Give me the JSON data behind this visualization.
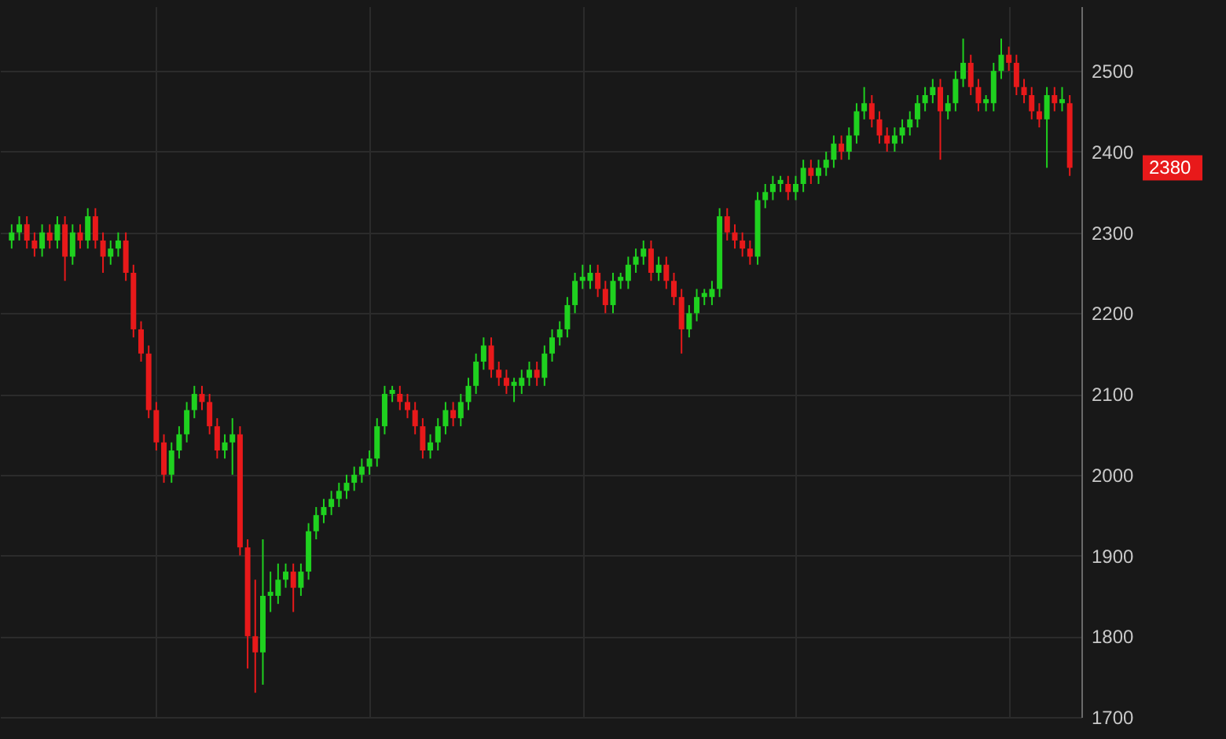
{
  "chart_data": {
    "type": "candlestick",
    "categories": [
      null,
      null,
      null,
      null,
      null,
      null,
      null,
      null,
      null,
      null,
      null,
      null,
      null,
      null,
      null,
      null,
      null,
      null,
      null,
      null,
      null,
      null,
      null,
      null,
      null,
      null,
      null,
      null,
      null,
      null,
      null,
      null,
      null,
      null,
      null,
      null,
      null,
      null,
      null,
      null,
      null,
      null,
      null,
      null,
      null,
      null,
      null,
      null,
      null,
      null,
      null,
      null,
      null,
      null,
      null,
      null,
      null,
      null,
      null,
      null,
      null,
      null,
      null,
      null,
      null,
      null,
      null,
      null,
      null,
      null,
      null,
      null,
      null,
      null,
      null,
      null,
      null,
      null,
      null,
      null,
      null,
      null,
      null,
      null,
      null,
      null,
      null,
      null,
      null,
      null,
      null,
      null,
      null,
      null,
      null,
      null,
      null,
      null,
      null,
      null,
      null,
      null,
      null,
      null,
      null,
      null,
      null,
      null,
      null,
      null,
      null,
      null,
      null,
      null,
      null,
      null,
      null,
      null,
      null,
      null,
      null,
      null,
      null,
      null,
      null,
      null,
      null,
      null,
      null,
      null,
      null,
      null,
      null,
      null,
      null,
      null,
      null,
      null,
      null,
      null
    ],
    "ohlc": [
      [
        2290,
        2310,
        2280,
        2300
      ],
      [
        2300,
        2320,
        2290,
        2310
      ],
      [
        2310,
        2320,
        2280,
        2290
      ],
      [
        2290,
        2300,
        2270,
        2280
      ],
      [
        2280,
        2310,
        2270,
        2300
      ],
      [
        2300,
        2310,
        2280,
        2290
      ],
      [
        2290,
        2320,
        2280,
        2310
      ],
      [
        2310,
        2320,
        2240,
        2270
      ],
      [
        2270,
        2310,
        2260,
        2300
      ],
      [
        2300,
        2310,
        2280,
        2290
      ],
      [
        2290,
        2330,
        2280,
        2320
      ],
      [
        2320,
        2330,
        2280,
        2290
      ],
      [
        2290,
        2300,
        2250,
        2270
      ],
      [
        2270,
        2290,
        2260,
        2280
      ],
      [
        2280,
        2300,
        2270,
        2290
      ],
      [
        2290,
        2300,
        2240,
        2250
      ],
      [
        2250,
        2260,
        2170,
        2180
      ],
      [
        2180,
        2190,
        2140,
        2150
      ],
      [
        2150,
        2160,
        2070,
        2080
      ],
      [
        2080,
        2090,
        2030,
        2040
      ],
      [
        2040,
        2050,
        1990,
        2000
      ],
      [
        2000,
        2040,
        1990,
        2030
      ],
      [
        2030,
        2060,
        2020,
        2050
      ],
      [
        2050,
        2090,
        2040,
        2080
      ],
      [
        2080,
        2110,
        2070,
        2100
      ],
      [
        2100,
        2110,
        2080,
        2090
      ],
      [
        2090,
        2100,
        2050,
        2060
      ],
      [
        2060,
        2070,
        2020,
        2030
      ],
      [
        2030,
        2050,
        2020,
        2040
      ],
      [
        2040,
        2070,
        2000,
        2050
      ],
      [
        2050,
        2060,
        1900,
        1910
      ],
      [
        1910,
        1920,
        1760,
        1800
      ],
      [
        1800,
        1870,
        1730,
        1780
      ],
      [
        1780,
        1920,
        1740,
        1850
      ],
      [
        1850,
        1880,
        1830,
        1855
      ],
      [
        1850,
        1890,
        1840,
        1870
      ],
      [
        1870,
        1890,
        1860,
        1880
      ],
      [
        1880,
        1890,
        1830,
        1860
      ],
      [
        1860,
        1890,
        1850,
        1880
      ],
      [
        1880,
        1940,
        1870,
        1930
      ],
      [
        1930,
        1960,
        1920,
        1950
      ],
      [
        1950,
        1970,
        1940,
        1960
      ],
      [
        1960,
        1980,
        1950,
        1970
      ],
      [
        1970,
        1990,
        1960,
        1980
      ],
      [
        1980,
        2000,
        1970,
        1990
      ],
      [
        1990,
        2010,
        1980,
        2000
      ],
      [
        2000,
        2020,
        1990,
        2010
      ],
      [
        2010,
        2030,
        2000,
        2020
      ],
      [
        2020,
        2070,
        2010,
        2060
      ],
      [
        2060,
        2110,
        2050,
        2100
      ],
      [
        2100,
        2110,
        2090,
        2105
      ],
      [
        2100,
        2110,
        2080,
        2090
      ],
      [
        2090,
        2100,
        2070,
        2080
      ],
      [
        2080,
        2090,
        2050,
        2060
      ],
      [
        2060,
        2070,
        2020,
        2030
      ],
      [
        2030,
        2050,
        2020,
        2040
      ],
      [
        2040,
        2070,
        2030,
        2060
      ],
      [
        2060,
        2090,
        2050,
        2080
      ],
      [
        2080,
        2090,
        2060,
        2070
      ],
      [
        2070,
        2100,
        2060,
        2090
      ],
      [
        2090,
        2120,
        2080,
        2110
      ],
      [
        2110,
        2150,
        2100,
        2140
      ],
      [
        2140,
        2170,
        2130,
        2160
      ],
      [
        2160,
        2170,
        2120,
        2130
      ],
      [
        2130,
        2140,
        2110,
        2120
      ],
      [
        2120,
        2130,
        2100,
        2110
      ],
      [
        2110,
        2120,
        2090,
        2115
      ],
      [
        2110,
        2130,
        2100,
        2120
      ],
      [
        2120,
        2140,
        2110,
        2130
      ],
      [
        2130,
        2140,
        2110,
        2120
      ],
      [
        2120,
        2160,
        2110,
        2150
      ],
      [
        2150,
        2180,
        2140,
        2170
      ],
      [
        2170,
        2190,
        2160,
        2180
      ],
      [
        2180,
        2220,
        2170,
        2210
      ],
      [
        2210,
        2250,
        2200,
        2240
      ],
      [
        2240,
        2260,
        2230,
        2245
      ],
      [
        2240,
        2260,
        2230,
        2250
      ],
      [
        2250,
        2260,
        2220,
        2230
      ],
      [
        2230,
        2240,
        2200,
        2210
      ],
      [
        2210,
        2250,
        2200,
        2240
      ],
      [
        2240,
        2250,
        2230,
        2245
      ],
      [
        2240,
        2270,
        2230,
        2260
      ],
      [
        2260,
        2280,
        2250,
        2270
      ],
      [
        2270,
        2290,
        2260,
        2280
      ],
      [
        2280,
        2290,
        2240,
        2250
      ],
      [
        2250,
        2270,
        2240,
        2260
      ],
      [
        2260,
        2270,
        2230,
        2240
      ],
      [
        2240,
        2250,
        2210,
        2220
      ],
      [
        2220,
        2230,
        2150,
        2180
      ],
      [
        2180,
        2210,
        2170,
        2200
      ],
      [
        2200,
        2230,
        2190,
        2220
      ],
      [
        2220,
        2230,
        2210,
        2225
      ],
      [
        2220,
        2240,
        2210,
        2230
      ],
      [
        2230,
        2330,
        2220,
        2320
      ],
      [
        2320,
        2330,
        2290,
        2300
      ],
      [
        2300,
        2310,
        2280,
        2290
      ],
      [
        2290,
        2300,
        2270,
        2280
      ],
      [
        2280,
        2290,
        2260,
        2270
      ],
      [
        2270,
        2350,
        2260,
        2340
      ],
      [
        2340,
        2360,
        2330,
        2350
      ],
      [
        2350,
        2370,
        2340,
        2360
      ],
      [
        2360,
        2370,
        2350,
        2365
      ],
      [
        2360,
        2370,
        2340,
        2350
      ],
      [
        2350,
        2370,
        2340,
        2360
      ],
      [
        2360,
        2390,
        2350,
        2380
      ],
      [
        2380,
        2390,
        2360,
        2370
      ],
      [
        2370,
        2390,
        2360,
        2380
      ],
      [
        2380,
        2400,
        2370,
        2390
      ],
      [
        2390,
        2420,
        2380,
        2410
      ],
      [
        2410,
        2420,
        2390,
        2400
      ],
      [
        2400,
        2430,
        2390,
        2420
      ],
      [
        2420,
        2460,
        2410,
        2450
      ],
      [
        2450,
        2480,
        2440,
        2460
      ],
      [
        2460,
        2470,
        2430,
        2440
      ],
      [
        2440,
        2450,
        2410,
        2420
      ],
      [
        2420,
        2430,
        2400,
        2410
      ],
      [
        2410,
        2430,
        2400,
        2420
      ],
      [
        2420,
        2440,
        2410,
        2430
      ],
      [
        2430,
        2450,
        2420,
        2440
      ],
      [
        2440,
        2470,
        2430,
        2460
      ],
      [
        2460,
        2480,
        2450,
        2470
      ],
      [
        2470,
        2490,
        2460,
        2480
      ],
      [
        2480,
        2490,
        2390,
        2450
      ],
      [
        2450,
        2470,
        2440,
        2460
      ],
      [
        2460,
        2500,
        2450,
        2490
      ],
      [
        2490,
        2540,
        2480,
        2510
      ],
      [
        2510,
        2520,
        2470,
        2480
      ],
      [
        2480,
        2490,
        2450,
        2460
      ],
      [
        2460,
        2470,
        2450,
        2465
      ],
      [
        2460,
        2510,
        2450,
        2500
      ],
      [
        2500,
        2540,
        2490,
        2520
      ],
      [
        2520,
        2530,
        2500,
        2510
      ],
      [
        2510,
        2520,
        2470,
        2480
      ],
      [
        2480,
        2490,
        2460,
        2470
      ],
      [
        2470,
        2480,
        2440,
        2450
      ],
      [
        2450,
        2460,
        2430,
        2440
      ],
      [
        2440,
        2480,
        2380,
        2470
      ],
      [
        2470,
        2480,
        2450,
        2460
      ],
      [
        2460,
        2480,
        2450,
        2465
      ],
      [
        2460,
        2470,
        2370,
        2380
      ]
    ],
    "colors": [
      "#1fd11f",
      "#1fd11f",
      "#e8191a",
      "#e8191a",
      "#1fd11f",
      "#e8191a",
      "#1fd11f",
      "#e8191a",
      "#1fd11f",
      "#e8191a",
      "#1fd11f",
      "#e8191a",
      "#e8191a",
      "#1fd11f",
      "#1fd11f",
      "#e8191a",
      "#e8191a",
      "#e8191a",
      "#e8191a",
      "#e8191a",
      "#e8191a",
      "#1fd11f",
      "#1fd11f",
      "#1fd11f",
      "#1fd11f",
      "#e8191a",
      "#e8191a",
      "#e8191a",
      "#1fd11f",
      "#1fd11f",
      "#e8191a",
      "#e8191a",
      "#e8191a",
      "#1fd11f",
      "#1fd11f",
      "#1fd11f",
      "#1fd11f",
      "#e8191a",
      "#1fd11f",
      "#1fd11f",
      "#1fd11f",
      "#1fd11f",
      "#1fd11f",
      "#1fd11f",
      "#1fd11f",
      "#1fd11f",
      "#1fd11f",
      "#1fd11f",
      "#1fd11f",
      "#1fd11f",
      "#1fd11f",
      "#e8191a",
      "#e8191a",
      "#e8191a",
      "#e8191a",
      "#1fd11f",
      "#1fd11f",
      "#1fd11f",
      "#e8191a",
      "#1fd11f",
      "#1fd11f",
      "#1fd11f",
      "#1fd11f",
      "#e8191a",
      "#e8191a",
      "#e8191a",
      "#1fd11f",
      "#1fd11f",
      "#1fd11f",
      "#e8191a",
      "#1fd11f",
      "#1fd11f",
      "#1fd11f",
      "#1fd11f",
      "#1fd11f",
      "#1fd11f",
      "#1fd11f",
      "#e8191a",
      "#e8191a",
      "#1fd11f",
      "#1fd11f",
      "#1fd11f",
      "#1fd11f",
      "#1fd11f",
      "#e8191a",
      "#1fd11f",
      "#e8191a",
      "#e8191a",
      "#e8191a",
      "#1fd11f",
      "#1fd11f",
      "#1fd11f",
      "#1fd11f",
      "#1fd11f",
      "#e8191a",
      "#e8191a",
      "#e8191a",
      "#e8191a",
      "#1fd11f",
      "#1fd11f",
      "#1fd11f",
      "#1fd11f",
      "#e8191a",
      "#1fd11f",
      "#1fd11f",
      "#e8191a",
      "#1fd11f",
      "#1fd11f",
      "#1fd11f",
      "#e8191a",
      "#1fd11f",
      "#1fd11f",
      "#1fd11f",
      "#e8191a",
      "#e8191a",
      "#e8191a",
      "#1fd11f",
      "#1fd11f",
      "#1fd11f",
      "#1fd11f",
      "#1fd11f",
      "#1fd11f",
      "#e8191a",
      "#1fd11f",
      "#1fd11f",
      "#1fd11f",
      "#e8191a",
      "#e8191a",
      "#1fd11f",
      "#1fd11f",
      "#1fd11f",
      "#e8191a",
      "#e8191a",
      "#e8191a",
      "#e8191a",
      "#e8191a",
      "#1fd11f",
      "#e8191a",
      "#1fd11f",
      "#e8191a"
    ],
    "ylim": [
      1700,
      2580
    ],
    "yticks": [
      1700,
      1800,
      1900,
      2000,
      2100,
      2200,
      2300,
      2400,
      2500
    ],
    "grid": true,
    "tick_labels": "y",
    "annotations": [
      "2380"
    ]
  }
}
